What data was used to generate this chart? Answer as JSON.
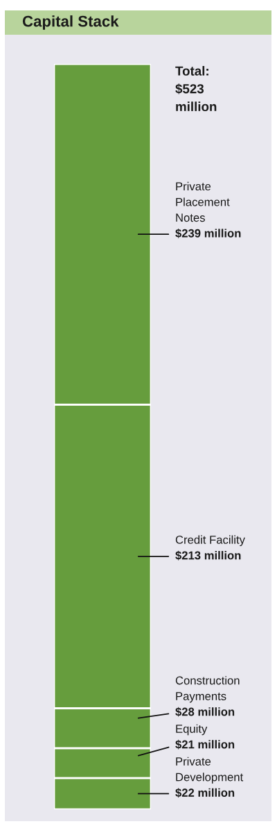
{
  "chart_data": {
    "type": "bar",
    "title": "Capital Stack",
    "categories": [
      null
    ],
    "stacked": true,
    "series": [
      {
        "name": "Private\nDevelopment",
        "color": "#669d3d",
        "values": [
          22
        ],
        "value_labels": [
          "$22 million"
        ]
      },
      {
        "name": "Equity",
        "color": "#669d3d",
        "values": [
          21
        ],
        "value_labels": [
          "$21 million"
        ]
      },
      {
        "name": "Construction\nPayments",
        "color": "#669d3d",
        "values": [
          28
        ],
        "value_labels": [
          "$28 million"
        ]
      },
      {
        "name": "Credit Facility",
        "color": "#669d3d",
        "values": [
          213
        ],
        "value_labels": [
          "$213 million"
        ]
      },
      {
        "name": "Private\nPlacement\nNotes",
        "color": "#669d3d",
        "values": [
          239
        ],
        "value_labels": [
          "$239 million"
        ]
      }
    ],
    "totals": [
      "Total:\n$523\nmillion"
    ]
  }
}
